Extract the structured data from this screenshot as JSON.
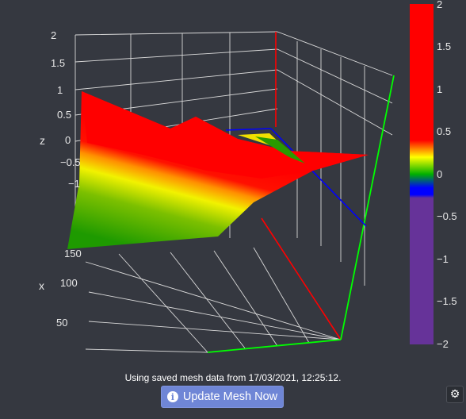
{
  "chart_data": {
    "type": "surface",
    "axes": {
      "z": {
        "label": "z",
        "ticks": [
          "2",
          "1.5",
          "1",
          "0.5",
          "0",
          "−0.5",
          "−1"
        ]
      },
      "x": {
        "label": "x",
        "ticks": [
          "150",
          "100",
          "50"
        ]
      },
      "y": {
        "label": "",
        "ticks": []
      }
    },
    "colorbar": {
      "range": [
        -2,
        2
      ],
      "ticks": [
        "2",
        "1.5",
        "1",
        "0.5",
        "0",
        "−0.5",
        "−1",
        "−1.5",
        "−2"
      ],
      "colorscale": [
        [
          0.0,
          "#663399"
        ],
        [
          0.43,
          "#663399"
        ],
        [
          0.44,
          "#0000ff"
        ],
        [
          0.46,
          "#0000ff"
        ],
        [
          0.5,
          "#00b000"
        ],
        [
          0.55,
          "#ffff00"
        ],
        [
          0.6,
          "#ff0000"
        ],
        [
          1.0,
          "#ff0000"
        ]
      ]
    },
    "axis_colors": {
      "x": "#ff0000",
      "y": "#00ff00",
      "z": "#0000ff"
    }
  },
  "status": {
    "text": "Using saved mesh data from 17/03/2021, 12:25:12."
  },
  "update_button": {
    "label": "Update Mesh Now",
    "icon": "info-circle-icon"
  },
  "settings_button": {
    "icon": "gear-icon"
  }
}
